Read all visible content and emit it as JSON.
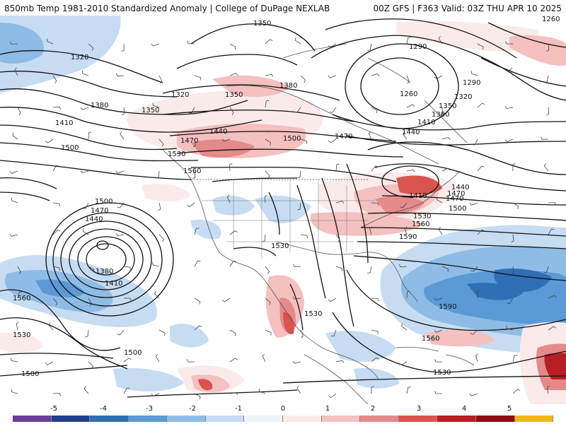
{
  "header": {
    "left": "850mb Temp 1981-2010 Standardized Anomaly | College of DuPage NEXLAB",
    "right": "00Z GFS | F363 Valid: 03Z THU APR 10 2025"
  },
  "colorbar": {
    "ticks": [
      "-5",
      "-4",
      "-3",
      "-2",
      "-1",
      "0",
      "1",
      "2",
      "3",
      "4",
      "5"
    ],
    "colors": [
      "#6a3d9a",
      "#1f3f8f",
      "#2f6fb5",
      "#5b9ad6",
      "#8fbce6",
      "#c6dcf2",
      "#eef4fb",
      "#fbeaea",
      "#f4c0c0",
      "#e58a8a",
      "#d9544f",
      "#b81f24",
      "#8c0f16",
      "#f2b61d"
    ]
  },
  "contour_labels": [
    "1350",
    "1320",
    "1380",
    "1410",
    "1500",
    "1380",
    "1320",
    "1350",
    "1470",
    "1440",
    "1470",
    "1530",
    "1500",
    "1560",
    "1470",
    "1440",
    "1500",
    "1380",
    "1410",
    "1560",
    "1530",
    "1500",
    "1500",
    "1350",
    "1290",
    "1260",
    "1320",
    "1290",
    "1380",
    "1350",
    "1410",
    "1440",
    "1470",
    "1440",
    "1410",
    "1470",
    "1500",
    "1530",
    "1560",
    "1590",
    "1530",
    "1530",
    "1590",
    "1560",
    "1530",
    "1260"
  ]
}
